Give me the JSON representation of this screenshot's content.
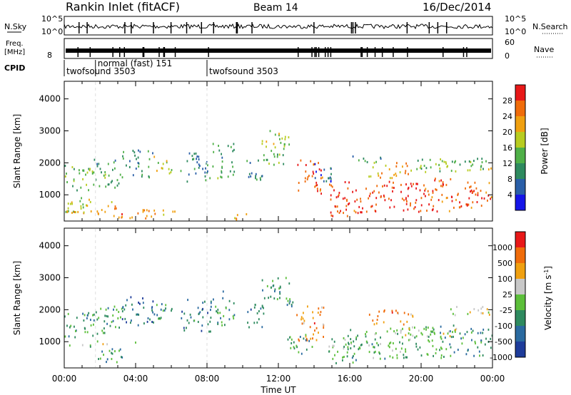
{
  "header": {
    "station": "Rankin Inlet (fitACF)",
    "beam": "Beam 14",
    "date": "16/Dec/2014"
  },
  "noise_panel": {
    "left_label": "N.Sky",
    "right_label": "N.Search",
    "tick_top": "10^5",
    "tick_bottom": "10^0",
    "right_tick_top": "10^5",
    "right_tick_bottom": "10^0"
  },
  "freq_panel": {
    "left_label_1": "Freq.",
    "left_label_2": "[MHz]",
    "left_tick": "8",
    "right_label": "Nave",
    "right_tick_top": "60",
    "right_tick_bottom": "0"
  },
  "cpid_panel": {
    "label": "CPID",
    "modes": [
      {
        "name": "twofsound 3503",
        "start": 0.0,
        "end": 1.75
      },
      {
        "name": "normal (fast) 151",
        "start": 1.75,
        "end": 8.0
      },
      {
        "name": "twofsound 3503",
        "start": 8.0,
        "end": 24.0
      }
    ]
  },
  "chart_data": [
    {
      "type": "heatmap",
      "parameter": "Power",
      "xlabel": "",
      "ylabel": "Slant Range [km]",
      "xlim": [
        0,
        24
      ],
      "ylim": [
        180,
        4550
      ],
      "yticks": [
        "1000",
        "2000",
        "3000",
        "4000"
      ],
      "colorbar": {
        "label": "Power [dB]",
        "ticks": [
          "4",
          "8",
          "12",
          "16",
          "20",
          "24",
          "28"
        ],
        "colors": [
          "#1515e8",
          "#2a5fa8",
          "#2e8a5f",
          "#4fb048",
          "#b8cc20",
          "#f0a010",
          "#f06c0a",
          "#e81818"
        ]
      },
      "cells": [
        [
          0.0,
          1.6,
          1100,
          1900,
          0.45
        ],
        [
          0.0,
          1.6,
          400,
          900,
          0.55
        ],
        [
          0.1,
          1.5,
          300,
          500,
          0.7
        ],
        [
          1.6,
          3.2,
          1200,
          2100,
          0.35
        ],
        [
          1.8,
          3.3,
          250,
          800,
          0.78
        ],
        [
          3.2,
          5.0,
          1500,
          2400,
          0.3
        ],
        [
          3.4,
          4.8,
          250,
          600,
          0.8
        ],
        [
          5.0,
          6.0,
          1600,
          2200,
          0.55
        ],
        [
          4.8,
          6.2,
          250,
          500,
          0.75
        ],
        [
          6.5,
          8.2,
          1300,
          2300,
          0.25
        ],
        [
          8.3,
          9.5,
          1500,
          2600,
          0.35
        ],
        [
          9.5,
          10.5,
          200,
          450,
          0.7
        ],
        [
          10.2,
          11.2,
          1400,
          2200,
          0.3
        ],
        [
          11.0,
          12.6,
          2300,
          3000,
          0.5
        ],
        [
          11.0,
          12.4,
          1900,
          2300,
          0.4
        ],
        [
          13.0,
          14.5,
          1000,
          2100,
          0.9
        ],
        [
          14.0,
          15.0,
          1300,
          2000,
          0.15
        ],
        [
          14.8,
          16.2,
          300,
          1400,
          0.95
        ],
        [
          16.0,
          18.0,
          400,
          1300,
          0.95
        ],
        [
          18.0,
          20.0,
          450,
          1400,
          0.92
        ],
        [
          20.0,
          22.0,
          450,
          1500,
          0.9
        ],
        [
          22.0,
          24.0,
          500,
          1400,
          0.93
        ],
        [
          17.0,
          19.5,
          1500,
          2000,
          0.7
        ],
        [
          19.5,
          24.0,
          1700,
          2100,
          0.5
        ],
        [
          22.0,
          24.0,
          1950,
          2150,
          0.2
        ],
        [
          16.0,
          18.0,
          2000,
          2200,
          0.3
        ]
      ]
    },
    {
      "type": "heatmap",
      "parameter": "Velocity",
      "xlabel": "Time UT",
      "ylabel": "Slant Range [km]",
      "xlim": [
        0,
        24
      ],
      "ylim": [
        180,
        4550
      ],
      "xticks": [
        "00:00",
        "04:00",
        "08:00",
        "12:00",
        "16:00",
        "20:00",
        "00:00"
      ],
      "yticks": [
        "1000",
        "2000",
        "3000",
        "4000"
      ],
      "colorbar": {
        "label": "Velocity [m s^-1]",
        "ticks": [
          "1000",
          "500",
          "100",
          "25",
          "-25",
          "-100",
          "-500",
          "-1000"
        ],
        "colors": [
          "#1e3c9a",
          "#2a6aa0",
          "#2e8a5f",
          "#5cbf3a",
          "#c8c8c8",
          "#f0a010",
          "#f06c0a",
          "#e81818"
        ]
      },
      "cells": [
        [
          0.0,
          1.6,
          1100,
          1900,
          0.3
        ],
        [
          0.2,
          1.6,
          700,
          900,
          0.45
        ],
        [
          1.6,
          3.2,
          1200,
          2100,
          0.3
        ],
        [
          1.5,
          4.0,
          900,
          1000,
          0.55
        ],
        [
          1.8,
          3.3,
          250,
          800,
          0.3
        ],
        [
          3.2,
          5.0,
          1500,
          2400,
          0.15
        ],
        [
          5.0,
          6.0,
          1600,
          2200,
          0.3
        ],
        [
          6.5,
          8.2,
          1300,
          2300,
          0.2
        ],
        [
          8.3,
          9.5,
          1500,
          2600,
          0.3
        ],
        [
          10.2,
          11.2,
          1400,
          2200,
          0.2
        ],
        [
          11.0,
          12.6,
          2300,
          3000,
          0.3
        ],
        [
          12.0,
          13.0,
          2000,
          2600,
          0.3
        ],
        [
          13.0,
          14.5,
          1000,
          2100,
          0.78
        ],
        [
          14.8,
          16.2,
          300,
          1400,
          0.4
        ],
        [
          16.0,
          18.0,
          400,
          1300,
          0.35
        ],
        [
          18.0,
          20.0,
          450,
          1400,
          0.4
        ],
        [
          20.0,
          22.0,
          450,
          1500,
          0.3
        ],
        [
          22.0,
          24.0,
          500,
          1400,
          0.25
        ],
        [
          18.8,
          22.0,
          1100,
          1450,
          0.55
        ],
        [
          21.5,
          24.0,
          1800,
          2100,
          0.55
        ],
        [
          17.0,
          19.5,
          1500,
          2000,
          0.8
        ],
        [
          12.5,
          14.0,
          600,
          1200,
          0.3
        ]
      ]
    }
  ]
}
